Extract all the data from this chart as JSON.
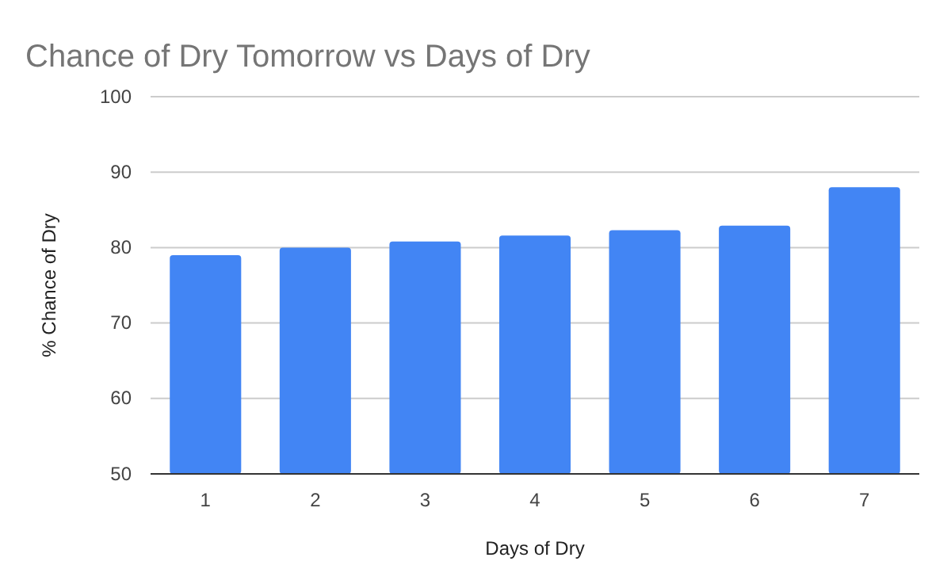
{
  "chart_data": {
    "type": "bar",
    "title": "Chance of Dry Tomorrow vs Days of Dry",
    "xlabel": "Days of Dry",
    "ylabel": "% Chance of Dry",
    "categories": [
      "1",
      "2",
      "3",
      "4",
      "5",
      "6",
      "7"
    ],
    "values": [
      79,
      80,
      80.8,
      81.6,
      82.3,
      82.9,
      88
    ],
    "color": "#4285f4",
    "ylim": [
      50,
      100
    ],
    "yticks": [
      50,
      60,
      70,
      80,
      90,
      100
    ],
    "grid": "y"
  }
}
